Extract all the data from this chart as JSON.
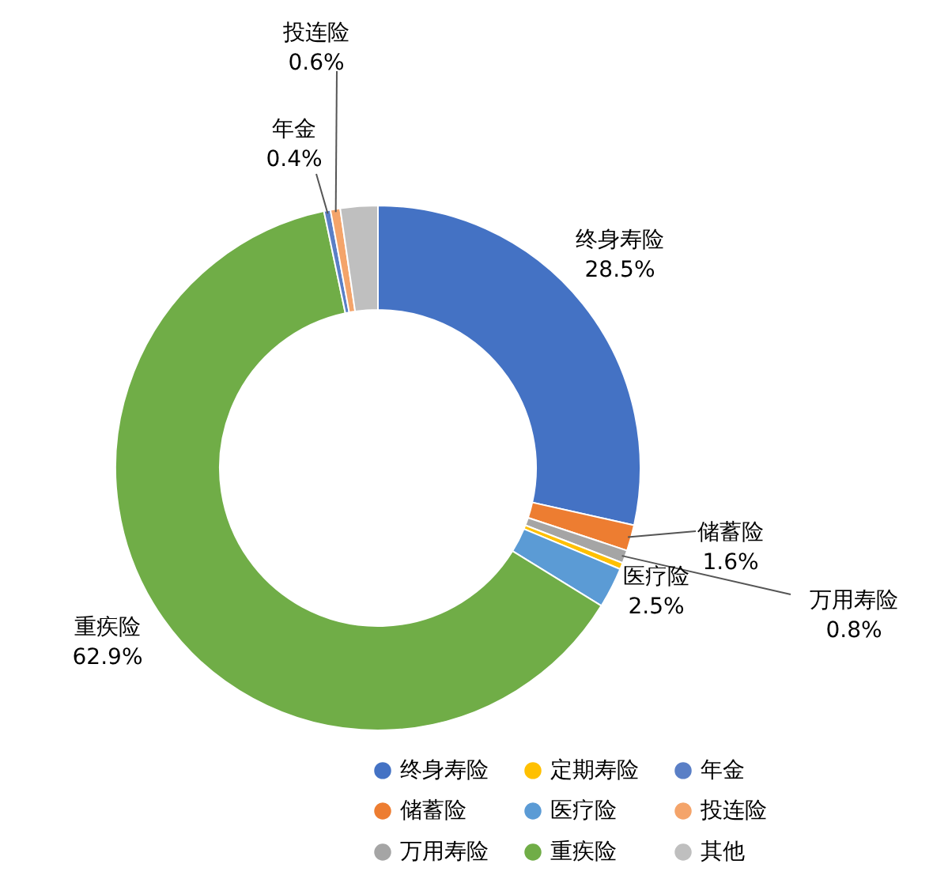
{
  "chart_data": {
    "type": "donut",
    "categories": [
      "终身寿险",
      "储蓄险",
      "万用寿险",
      "定期寿险",
      "医疗险",
      "重疾险",
      "年金",
      "投连险",
      "其他"
    ],
    "values": [
      28.5,
      1.6,
      0.8,
      0.4,
      2.5,
      62.9,
      0.4,
      0.6,
      2.3
    ],
    "value_labels": [
      "28.5%",
      "1.6%",
      "0.8%",
      null,
      "2.5%",
      "62.9%",
      "0.4%",
      "0.6%",
      null
    ],
    "colors": [
      "#4472c4",
      "#ed7d31",
      "#a5a5a5",
      "#ffc000",
      "#5b9bd5",
      "#70ad47",
      "#5a7fc6",
      "#f4a46a",
      "#bfbfbf"
    ],
    "legend": "bottom right"
  }
}
